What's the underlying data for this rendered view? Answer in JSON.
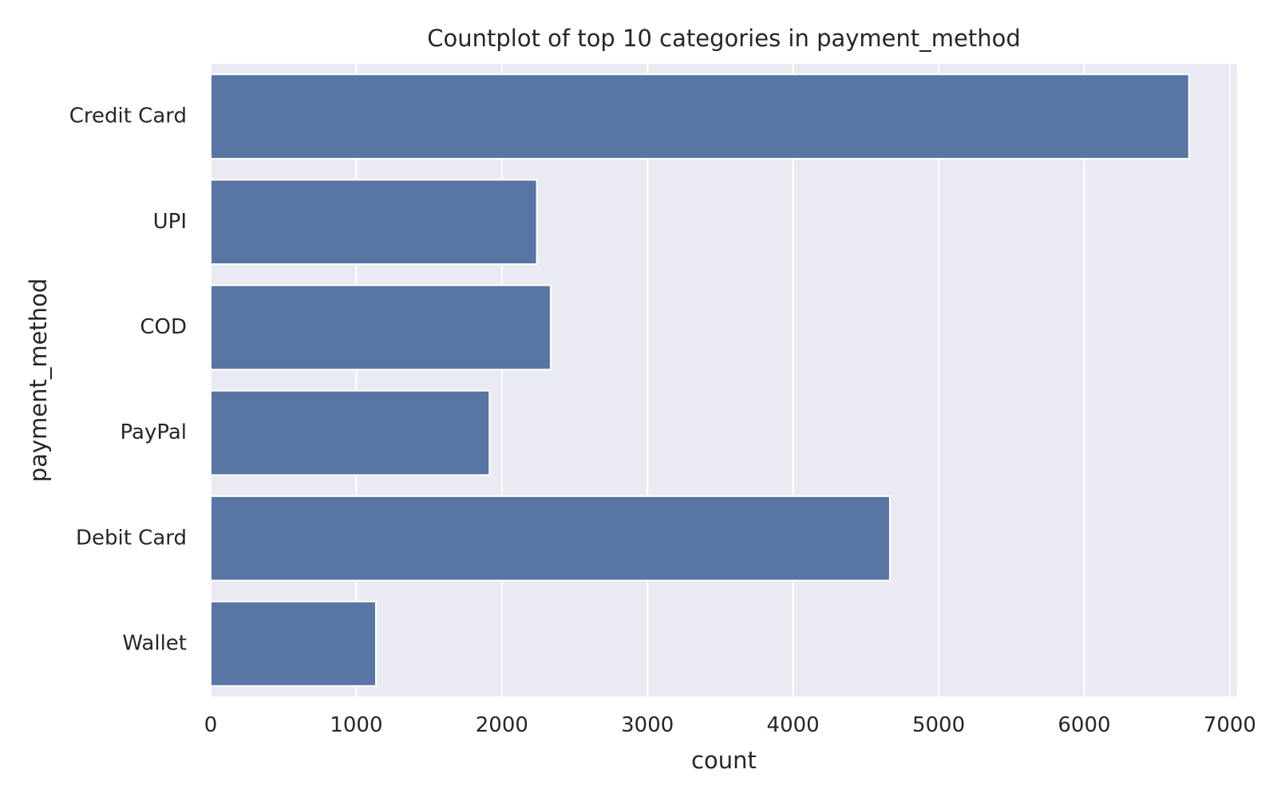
{
  "chart_data": {
    "type": "bar",
    "orientation": "horizontal",
    "title": "Countplot of top 10 categories in payment_method",
    "xlabel": "count",
    "ylabel": "payment_method",
    "categories": [
      "Credit Card",
      "UPI",
      "COD",
      "PayPal",
      "Debit Card",
      "Wallet"
    ],
    "values": [
      6720,
      2240,
      2335,
      1915,
      4665,
      1135
    ],
    "xlim": [
      0,
      7050
    ],
    "xticks": [
      0,
      1000,
      2000,
      3000,
      4000,
      5000,
      6000,
      7000
    ],
    "xtick_labels": [
      "0",
      "1000",
      "2000",
      "3000",
      "4000",
      "5000",
      "6000",
      "7000"
    ],
    "grid": true,
    "colors": {
      "bar": "#5875a4",
      "plot_background": "#eaeaf2",
      "grid": "#ffffff"
    }
  }
}
